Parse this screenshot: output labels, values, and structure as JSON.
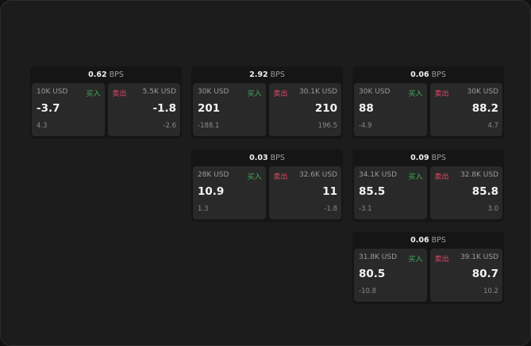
{
  "unit_label": "BPS",
  "buy_label": "买入",
  "sell_label": "卖出",
  "colors": {
    "buy": "#3fae5c",
    "sell": "#e0476a",
    "background": "#1c1c1c",
    "card": "#292929"
  },
  "cards": [
    {
      "spread": "0.62",
      "buy": {
        "size": "10K USD",
        "price": "-3.7",
        "change": "4.3"
      },
      "sell": {
        "size": "5.5K USD",
        "price": "-1.8",
        "change": "-2.6"
      }
    },
    {
      "spread": "2.92",
      "buy": {
        "size": "30K USD",
        "price": "201",
        "change": "-188.1"
      },
      "sell": {
        "size": "30.1K USD",
        "price": "210",
        "change": "196.5"
      }
    },
    {
      "spread": "0.06",
      "buy": {
        "size": "30K USD",
        "price": "88",
        "change": "-4.9"
      },
      "sell": {
        "size": "30K USD",
        "price": "88.2",
        "change": "4.7"
      }
    },
    {
      "spread": "0.03",
      "buy": {
        "size": "28K USD",
        "price": "10.9",
        "change": "1.3"
      },
      "sell": {
        "size": "32.6K USD",
        "price": "11",
        "change": "-1.8"
      }
    },
    {
      "spread": "0.09",
      "buy": {
        "size": "34.1K USD",
        "price": "85.5",
        "change": "-3.1"
      },
      "sell": {
        "size": "32.8K USD",
        "price": "85.8",
        "change": "3.0"
      }
    },
    {
      "spread": "0.06",
      "buy": {
        "size": "31.8K USD",
        "price": "80.5",
        "change": "-10.8"
      },
      "sell": {
        "size": "39.1K USD",
        "price": "80.7",
        "change": "10.2"
      }
    }
  ]
}
